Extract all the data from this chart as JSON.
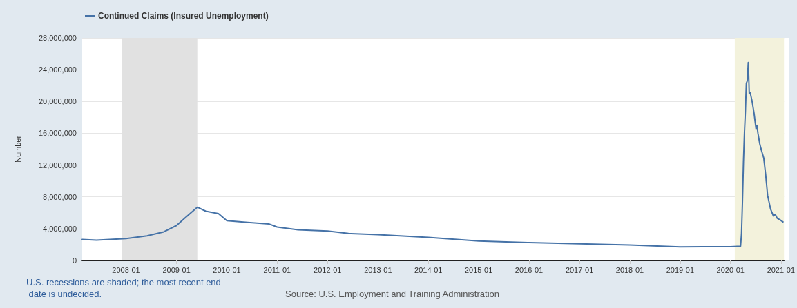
{
  "chart_data": {
    "type": "line",
    "ylabel": "Number",
    "legend": "top left",
    "grid": "y",
    "marker": "none",
    "line_style": "solid",
    "xlim": [
      "2007-02-17",
      "2021-01-23"
    ],
    "xticks": [
      "2008-01",
      "2009-01",
      "2010-01",
      "2011-01",
      "2012-01",
      "2013-01",
      "2014-01",
      "2015-01",
      "2016-01",
      "2017-01",
      "2018-01",
      "2019-01",
      "2020-01",
      "2021-01"
    ],
    "ylim": [
      0,
      28000000
    ],
    "yticks": [
      {
        "value": 0,
        "label": "0"
      },
      {
        "value": 4000000,
        "label": "4,000,000"
      },
      {
        "value": 8000000,
        "label": "8,000,000"
      },
      {
        "value": 12000000,
        "label": "12,000,000"
      },
      {
        "value": 16000000,
        "label": "16,000,000"
      },
      {
        "value": 20000000,
        "label": "20,000,000"
      },
      {
        "value": 24000000,
        "label": "24,000,000"
      },
      {
        "value": 28000000,
        "label": "28,000,000"
      }
    ],
    "bands": [
      {
        "axis": "x",
        "from": "2007-12",
        "to": "2009-06",
        "label": null,
        "color": "#e1e1e1"
      },
      {
        "axis": "x",
        "from": "2020-02",
        "to": "2021-01-23",
        "label": null,
        "color": "#f3f2dc"
      }
    ],
    "annotations": [
      "U.S. recessions are shaded; the most recent end date is undecided.",
      "Source: U.S. Employment and Training Administration"
    ],
    "series": [
      {
        "name": "Continued Claims (Insured Unemployment)",
        "color": "#4572a7",
        "x": [
          "2007-02-17",
          "2007-06",
          "2008-01",
          "2008-06",
          "2008-10",
          "2009-01",
          "2009-03",
          "2009-06",
          "2009-08",
          "2009-11",
          "2010-01",
          "2010-06",
          "2010-11",
          "2011-01",
          "2011-06",
          "2012-01",
          "2012-06",
          "2013-01",
          "2014-01",
          "2015-01",
          "2016-01",
          "2017-01",
          "2018-01",
          "2019-01",
          "2020-01",
          "2020-03-14",
          "2020-03-21",
          "2020-03-28",
          "2020-04-04",
          "2020-04-11",
          "2020-04-18",
          "2020-04-25",
          "2020-05-02",
          "2020-05-09",
          "2020-05-16",
          "2020-05-23",
          "2020-06-06",
          "2020-06-20",
          "2020-07-04",
          "2020-07-11",
          "2020-07-18",
          "2020-08-01",
          "2020-08-15",
          "2020-08-29",
          "2020-09-12",
          "2020-09-26",
          "2020-10-17",
          "2020-11-07",
          "2020-11-21",
          "2020-12-05",
          "2020-12-26",
          "2021-01-16"
        ],
        "values": [
          2650000,
          2550000,
          2750000,
          3100000,
          3600000,
          4400000,
          5300000,
          6700000,
          6200000,
          5900000,
          5000000,
          4800000,
          4600000,
          4200000,
          3850000,
          3700000,
          3400000,
          3250000,
          2900000,
          2450000,
          2250000,
          2100000,
          1950000,
          1720000,
          1730000,
          1800000,
          3400000,
          7500000,
          12400000,
          16000000,
          18700000,
          22300000,
          22600000,
          24900000,
          21000000,
          21100000,
          20000000,
          18500000,
          16600000,
          17000000,
          16000000,
          14600000,
          13700000,
          12900000,
          10800000,
          8200000,
          6500000,
          5600000,
          5800000,
          5300000,
          5100000,
          4850000
        ]
      }
    ]
  }
}
